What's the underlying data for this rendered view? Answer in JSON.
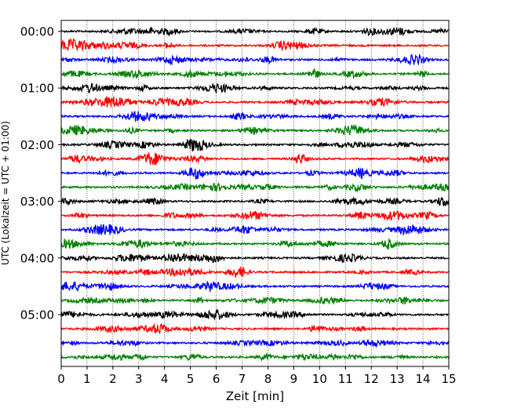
{
  "chart_data": {
    "type": "line",
    "title": "",
    "xlabel": "Zeit  [min]",
    "ylabel": "UTC (Lokalzeit = UTC + 01:00)",
    "xlim": [
      0,
      15
    ],
    "x_ticks": [
      "0",
      "1",
      "2",
      "3",
      "4",
      "5",
      "6",
      "7",
      "8",
      "9",
      "10",
      "11",
      "12",
      "13",
      "14",
      "15"
    ],
    "y_tick_labels": [
      {
        "label": "00:00",
        "trace": 0
      },
      {
        "label": "01:00",
        "trace": 4
      },
      {
        "label": "02:00",
        "trace": 8
      },
      {
        "label": "03:00",
        "trace": 12
      },
      {
        "label": "04:00",
        "trace": 16
      },
      {
        "label": "05:00",
        "trace": 20
      }
    ],
    "vertical_grid": true,
    "trace_interval_minutes": 15,
    "trace_count": 24,
    "trace_colors": [
      "#000000",
      "#ff0000",
      "#0000ff",
      "#008000"
    ],
    "series": [
      {
        "start_utc": "00:00",
        "color": "#000000"
      },
      {
        "start_utc": "00:15",
        "color": "#ff0000"
      },
      {
        "start_utc": "00:30",
        "color": "#0000ff"
      },
      {
        "start_utc": "00:45",
        "color": "#008000"
      },
      {
        "start_utc": "01:00",
        "color": "#000000"
      },
      {
        "start_utc": "01:15",
        "color": "#ff0000"
      },
      {
        "start_utc": "01:30",
        "color": "#0000ff"
      },
      {
        "start_utc": "01:45",
        "color": "#008000"
      },
      {
        "start_utc": "02:00",
        "color": "#000000"
      },
      {
        "start_utc": "02:15",
        "color": "#ff0000"
      },
      {
        "start_utc": "02:30",
        "color": "#0000ff"
      },
      {
        "start_utc": "02:45",
        "color": "#008000"
      },
      {
        "start_utc": "03:00",
        "color": "#000000"
      },
      {
        "start_utc": "03:15",
        "color": "#ff0000"
      },
      {
        "start_utc": "03:30",
        "color": "#0000ff"
      },
      {
        "start_utc": "03:45",
        "color": "#008000"
      },
      {
        "start_utc": "04:00",
        "color": "#000000"
      },
      {
        "start_utc": "04:15",
        "color": "#ff0000"
      },
      {
        "start_utc": "04:30",
        "color": "#0000ff"
      },
      {
        "start_utc": "04:45",
        "color": "#008000"
      },
      {
        "start_utc": "05:00",
        "color": "#000000"
      },
      {
        "start_utc": "05:15",
        "color": "#ff0000"
      },
      {
        "start_utc": "05:30",
        "color": "#0000ff"
      },
      {
        "start_utc": "05:45",
        "color": "#008000"
      }
    ]
  }
}
